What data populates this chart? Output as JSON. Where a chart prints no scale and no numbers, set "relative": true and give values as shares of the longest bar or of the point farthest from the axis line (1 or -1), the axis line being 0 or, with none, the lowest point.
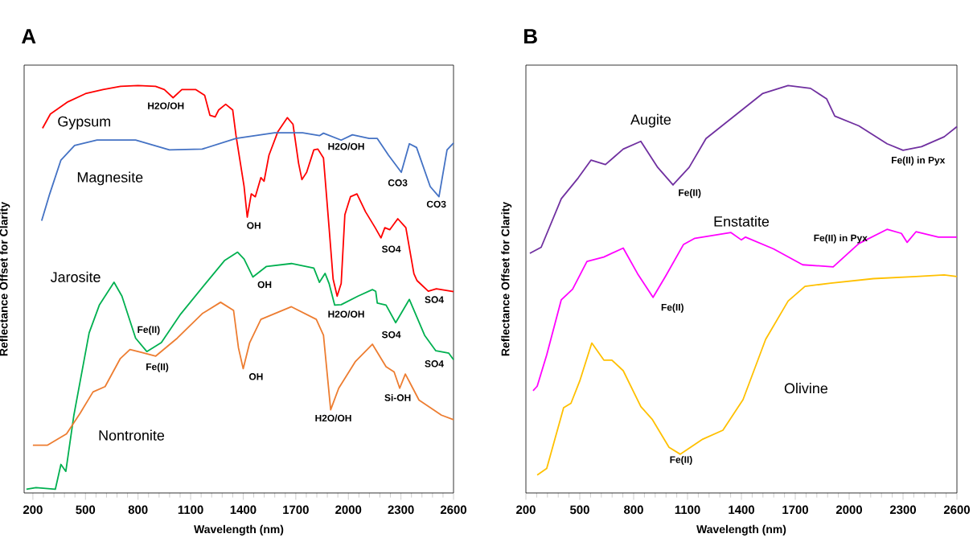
{
  "chart_data": [
    {
      "type": "line",
      "title": "A",
      "xlabel": "Wavelength (nm)",
      "ylabel": "Reflectance Offset for Clarity",
      "relative": true,
      "xlim": [
        150,
        2600
      ],
      "xticks": [
        200,
        500,
        800,
        1100,
        1400,
        1700,
        2000,
        2300,
        2600
      ],
      "series": [
        {
          "name": "Gypsum",
          "color": "#ff0000",
          "x": [
            255,
            300,
            400,
            500,
            600,
            700,
            800,
            900,
            950,
            1000,
            1050,
            1130,
            1180,
            1210,
            1240,
            1260,
            1300,
            1340,
            1359,
            1405,
            1423,
            1446,
            1469,
            1501,
            1519,
            1547,
            1597,
            1652,
            1684,
            1716,
            1735,
            1762,
            1803,
            1826,
            1858,
            1890,
            1913,
            1936,
            1959,
            1980,
            2012,
            2049,
            2098,
            2153,
            2186,
            2208,
            2236,
            2282,
            2328,
            2374,
            2392,
            2456,
            2502,
            2600
          ],
          "values": [
            0.895,
            0.93,
            0.96,
            0.98,
            0.99,
            0.998,
            1.0,
            0.998,
            0.99,
            0.97,
            0.99,
            0.99,
            0.976,
            0.927,
            0.923,
            0.94,
            0.954,
            0.94,
            0.877,
            0.752,
            0.677,
            0.734,
            0.727,
            0.774,
            0.765,
            0.829,
            0.886,
            0.921,
            0.905,
            0.809,
            0.769,
            0.787,
            0.842,
            0.844,
            0.822,
            0.651,
            0.525,
            0.483,
            0.514,
            0.683,
            0.727,
            0.734,
            0.69,
            0.651,
            0.626,
            0.651,
            0.646,
            0.673,
            0.651,
            0.538,
            0.521,
            0.495,
            0.501,
            0.494
          ]
        },
        {
          "name": "Magnesite",
          "color": "#4472c4",
          "x": [
            250,
            296,
            360,
            438,
            566,
            786,
            979,
            1166,
            1359,
            1579,
            1739,
            1835,
            1858,
            1959,
            2023,
            2119,
            2165,
            2229,
            2302,
            2348,
            2389,
            2467,
            2517,
            2563,
            2600
          ],
          "values": [
            0.668,
            0.734,
            0.817,
            0.853,
            0.866,
            0.866,
            0.842,
            0.844,
            0.87,
            0.884,
            0.884,
            0.877,
            0.883,
            0.866,
            0.879,
            0.87,
            0.87,
            0.829,
            0.787,
            0.857,
            0.848,
            0.752,
            0.727,
            0.842,
            0.859
          ]
        },
        {
          "name": "Jarosite",
          "color": "#00b050",
          "x": [
            163,
            218,
            328,
            360,
            388,
            434,
            521,
            580,
            663,
            708,
            786,
            850,
            933,
            1043,
            1185,
            1295,
            1368,
            1405,
            1455,
            1533,
            1675,
            1803,
            1835,
            1867,
            1890,
            1922,
            1959,
            2055,
            2137,
            2156,
            2165,
            2215,
            2270,
            2348,
            2435,
            2499,
            2573,
            2600
          ],
          "values": [
            0.009,
            0.013,
            0.009,
            0.07,
            0.053,
            0.191,
            0.393,
            0.462,
            0.517,
            0.483,
            0.38,
            0.347,
            0.369,
            0.439,
            0.514,
            0.571,
            0.591,
            0.574,
            0.53,
            0.556,
            0.563,
            0.552,
            0.517,
            0.539,
            0.514,
            0.461,
            0.462,
            0.483,
            0.499,
            0.495,
            0.466,
            0.461,
            0.418,
            0.475,
            0.387,
            0.349,
            0.343,
            0.327
          ]
        },
        {
          "name": "Nontronite",
          "color": "#ed7d31",
          "x": [
            200,
            282,
            392,
            470,
            543,
            612,
            699,
            754,
            818,
            901,
            1024,
            1166,
            1271,
            1345,
            1373,
            1400,
            1437,
            1501,
            1675,
            1817,
            1858,
            1899,
            1945,
            2041,
            2137,
            2215,
            2261,
            2293,
            2325,
            2403,
            2531,
            2600
          ],
          "values": [
            0.117,
            0.117,
            0.145,
            0.196,
            0.248,
            0.261,
            0.33,
            0.352,
            0.345,
            0.336,
            0.38,
            0.44,
            0.468,
            0.448,
            0.356,
            0.305,
            0.369,
            0.426,
            0.457,
            0.426,
            0.387,
            0.204,
            0.257,
            0.323,
            0.365,
            0.31,
            0.297,
            0.257,
            0.292,
            0.228,
            0.191,
            0.18
          ]
        }
      ],
      "annotations": [
        "H2O/OH",
        "OH",
        "H2O/OH",
        "CO3",
        "CO3",
        "SO4",
        "SO4",
        "OH",
        "H2O/OH",
        "SO4",
        "SO4",
        "Fe(II)",
        "Fe(II)",
        "OH",
        "Si-OH",
        "H2O/OH"
      ]
    },
    {
      "type": "line",
      "title": "B",
      "xlabel": "Wavelength (nm)",
      "ylabel": "Reflectance Offset for Clarity",
      "relative": true,
      "xlim": [
        200,
        2600
      ],
      "xticks": [
        200,
        500,
        800,
        1100,
        1400,
        1700,
        2000,
        2300,
        2600
      ],
      "series": [
        {
          "name": "Augite",
          "color": "#7030a0",
          "x": [
            222,
            285,
            397,
            491,
            563,
            643,
            742,
            840,
            934,
            1019,
            1109,
            1203,
            1360,
            1517,
            1660,
            1785,
            1875,
            1920,
            2054,
            2211,
            2300,
            2403,
            2529,
            2600
          ],
          "values": [
            0.588,
            0.603,
            0.722,
            0.773,
            0.817,
            0.806,
            0.844,
            0.863,
            0.799,
            0.756,
            0.799,
            0.87,
            0.925,
            0.98,
            1.0,
            0.993,
            0.967,
            0.925,
            0.901,
            0.857,
            0.841,
            0.85,
            0.874,
            0.899
          ]
        },
        {
          "name": "Enstatite",
          "color": "#ff00ff",
          "x": [
            240,
            263,
            316,
            397,
            460,
            540,
            634,
            742,
            822,
            908,
            979,
            1078,
            1141,
            1342,
            1400,
            1423,
            1579,
            1741,
            1911,
            2054,
            2211,
            2291,
            2323,
            2372,
            2497,
            2600
          ],
          "values": [
            0.251,
            0.262,
            0.339,
            0.474,
            0.5,
            0.568,
            0.579,
            0.601,
            0.538,
            0.48,
            0.533,
            0.61,
            0.625,
            0.639,
            0.621,
            0.628,
            0.599,
            0.56,
            0.555,
            0.612,
            0.647,
            0.637,
            0.615,
            0.641,
            0.628,
            0.628
          ]
        },
        {
          "name": "Olivine",
          "color": "#ffc000",
          "x": [
            263,
            316,
            410,
            451,
            500,
            567,
            634,
            679,
            742,
            840,
            903,
            997,
            1060,
            1185,
            1297,
            1409,
            1535,
            1660,
            1754,
            1897,
            2135,
            2372,
            2529,
            2600
          ],
          "values": [
            0.044,
            0.06,
            0.209,
            0.22,
            0.275,
            0.368,
            0.326,
            0.326,
            0.3,
            0.212,
            0.181,
            0.112,
            0.095,
            0.132,
            0.154,
            0.229,
            0.377,
            0.471,
            0.507,
            0.515,
            0.526,
            0.531,
            0.535,
            0.531
          ]
        }
      ],
      "annotations": [
        "Fe(II)",
        "Fe(II) in Pyx",
        "Fe(II) in Pyx",
        "Fe(II)",
        "Fe(II)"
      ]
    }
  ]
}
